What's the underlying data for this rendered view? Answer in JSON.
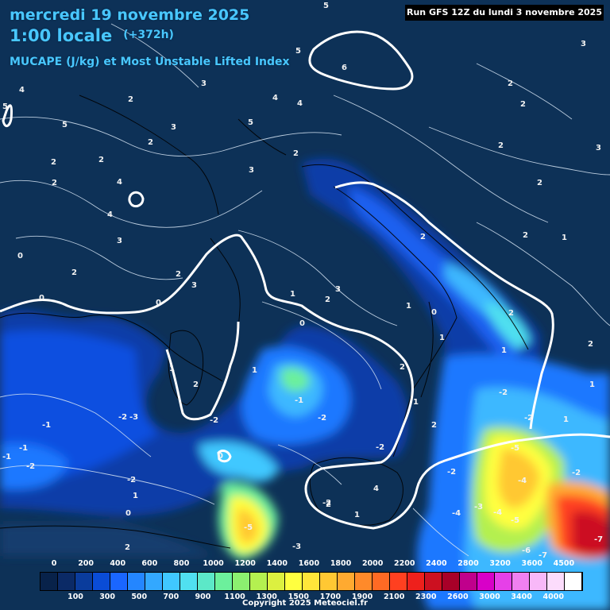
{
  "header": {
    "date": "mercredi 19 novembre 2025",
    "time": "1:00 locale",
    "lead": "(+372h)",
    "parameter": "MUCAPE (J/kg) et Most Unstable Lifted Index",
    "run": "Run GFS 12Z du lundi 3 novembre 2025"
  },
  "map_labels": [
    "5",
    "5",
    "3",
    "6",
    "4",
    "5",
    "3",
    "5",
    "2",
    "2",
    "3",
    "4",
    "2",
    "2",
    "5",
    "3",
    "2",
    "2",
    "4",
    "2",
    "2",
    "3",
    "4",
    "4",
    "3",
    "2",
    "1",
    "2",
    "2",
    "3",
    "2",
    "2",
    "1",
    "2",
    "0",
    "2",
    "0",
    "0",
    "3",
    "2",
    "1",
    "0",
    "0",
    "2",
    "1",
    "1",
    "2",
    "1",
    "1",
    "-2",
    "-2",
    "1",
    "2",
    "1",
    "1",
    "2",
    "-1",
    "-1",
    "-2",
    "-2",
    "-2",
    "-1",
    "-1",
    "-2",
    "-2",
    "0",
    "-2",
    "-2",
    "-2",
    "-5",
    "-4",
    "-3",
    "-4",
    "-5",
    "-5",
    "-6",
    "-7",
    "-7",
    "4",
    "2",
    "1",
    "2",
    "-3",
    "-3",
    "-4",
    "-2",
    "1",
    "0"
  ],
  "legend": {
    "unit": "J/kg",
    "top_labels": [
      "0",
      "200",
      "400",
      "600",
      "800",
      "1000",
      "1200",
      "1400",
      "1600",
      "1800",
      "2000",
      "2200",
      "2400",
      "2800",
      "3200",
      "3600",
      "4500"
    ],
    "bottom_labels": [
      "100",
      "300",
      "500",
      "700",
      "900",
      "1100",
      "1300",
      "1500",
      "1700",
      "1900",
      "2100",
      "2300",
      "2600",
      "3000",
      "3400",
      "4000"
    ],
    "colors": [
      "#08224a",
      "#0b2a66",
      "#0a3c9c",
      "#0a4cd6",
      "#1a66ff",
      "#2486ff",
      "#33a8ff",
      "#40c8ff",
      "#50e0f0",
      "#5ce8c8",
      "#6cf09c",
      "#8cf070",
      "#b4f050",
      "#dcf040",
      "#ffff40",
      "#ffe63a",
      "#ffc833",
      "#ffaa30",
      "#ff8a2a",
      "#ff6a24",
      "#ff4020",
      "#ee201c",
      "#cc1020",
      "#a80028",
      "#c0008c",
      "#d800c8",
      "#e640e8",
      "#f080f0",
      "#f8b8f8",
      "#fcdcfc",
      "#ffffff"
    ]
  },
  "copyright": "Copyright 2025 Meteociel.fr"
}
